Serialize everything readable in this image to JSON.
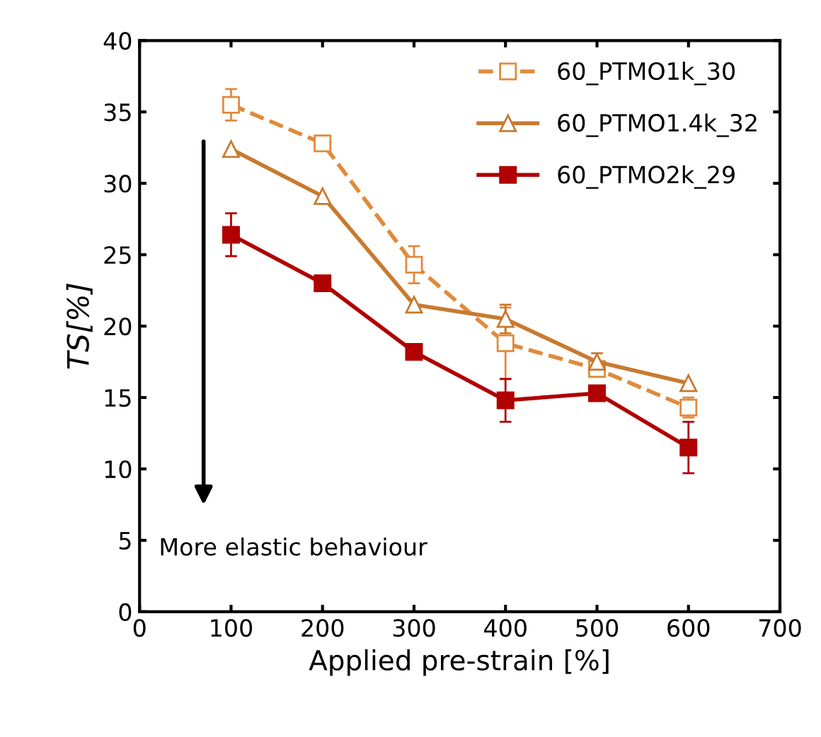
{
  "chart_data": {
    "type": "line",
    "xlabel": "Applied pre-strain [%]",
    "ylabel": "TS[%]",
    "x": [
      100,
      200,
      300,
      400,
      500,
      600
    ],
    "series": [
      {
        "name": "60_PTMO1k_30",
        "color": "#e08a3c",
        "values": [
          35.5,
          32.8,
          24.3,
          18.8,
          17.0,
          14.3
        ],
        "errors": [
          1.1,
          0.5,
          1.3,
          2.5,
          0.5,
          0.7
        ],
        "marker": "square",
        "line_style": "dashed"
      },
      {
        "name": "60_PTMO1.4k_32",
        "color": "#c87a30",
        "values": [
          32.4,
          29.1,
          21.5,
          20.5,
          17.5,
          16.0
        ],
        "errors": [
          null,
          null,
          null,
          1.0,
          0.6,
          null
        ],
        "marker": "triangle",
        "line_style": "solid"
      },
      {
        "name": "60_PTMO2k_29",
        "color": "#b00000",
        "values": [
          26.4,
          23.0,
          18.2,
          14.8,
          15.3,
          11.5
        ],
        "errors": [
          1.5,
          null,
          null,
          1.5,
          null,
          1.8
        ],
        "marker": "square",
        "line_style": "solid"
      }
    ],
    "xlim": [
      0,
      700
    ],
    "xticks": [
      0,
      100,
      200,
      300,
      400,
      500,
      600,
      700
    ],
    "ylim": [
      0,
      40
    ],
    "yticks": [
      0,
      5,
      10,
      15,
      20,
      25,
      30,
      35,
      40
    ],
    "grid": false,
    "legend": "top right",
    "annotations": [
      "More elastic behaviour"
    ]
  }
}
